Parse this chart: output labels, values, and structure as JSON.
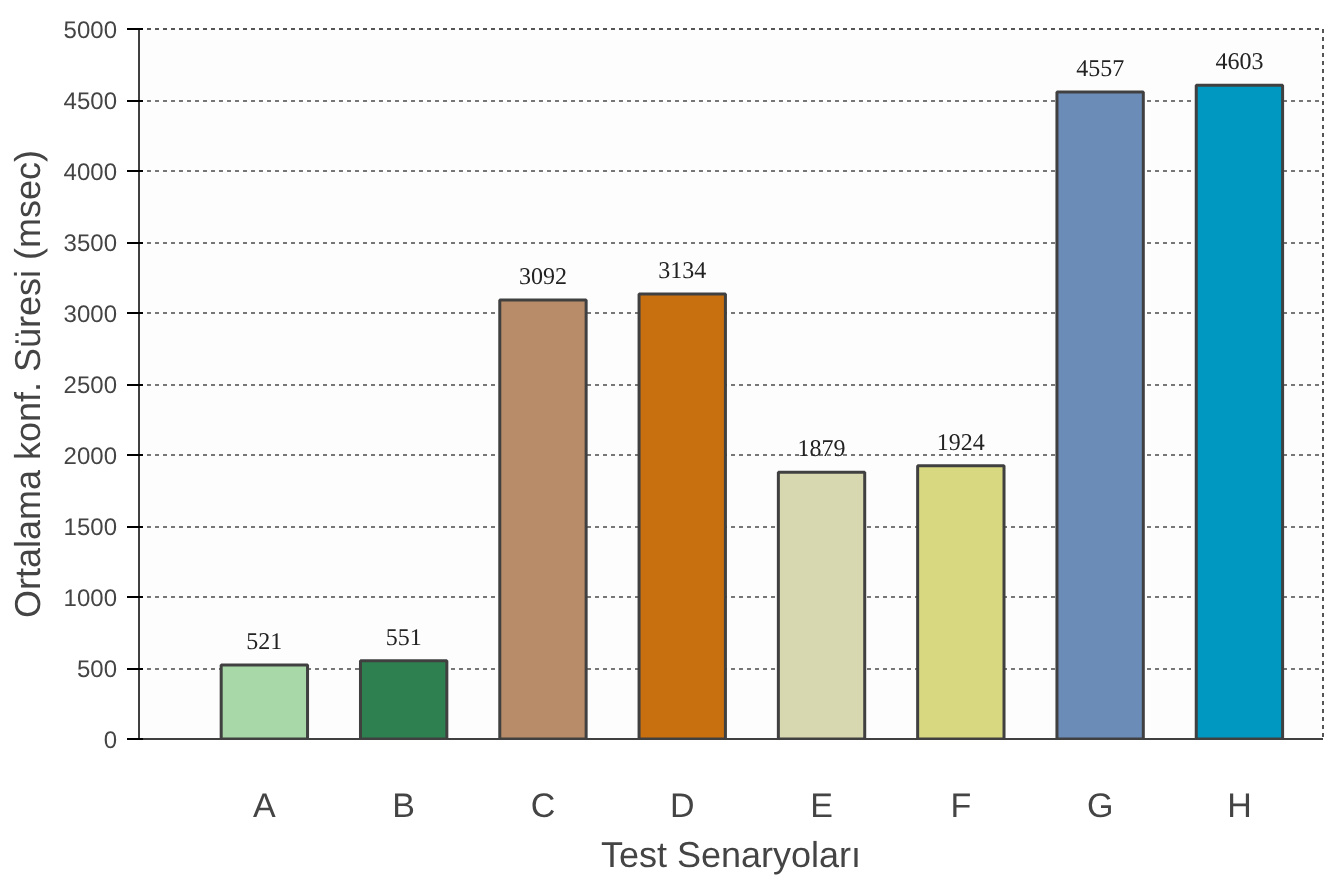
{
  "chart_data": {
    "type": "bar",
    "xlabel": "Test Senaryoları",
    "ylabel": "Ortalama konf. Süresi (msec)",
    "categories": [
      "A",
      "B",
      "C",
      "D",
      "E",
      "F",
      "G",
      "H"
    ],
    "values": [
      521,
      551,
      3092,
      3134,
      1879,
      1924,
      4557,
      4603
    ],
    "colors": [
      "#a8d8a8",
      "#2e8050",
      "#b88c68",
      "#c87010",
      "#d8d8b0",
      "#d8d880",
      "#6c8cb8",
      "#0098c0"
    ],
    "ylim": [
      0,
      5000
    ],
    "yticks": [
      0,
      500,
      1000,
      1500,
      2000,
      2500,
      3000,
      3500,
      4000,
      4500,
      5000
    ],
    "grid": "y",
    "data_labels": true
  }
}
